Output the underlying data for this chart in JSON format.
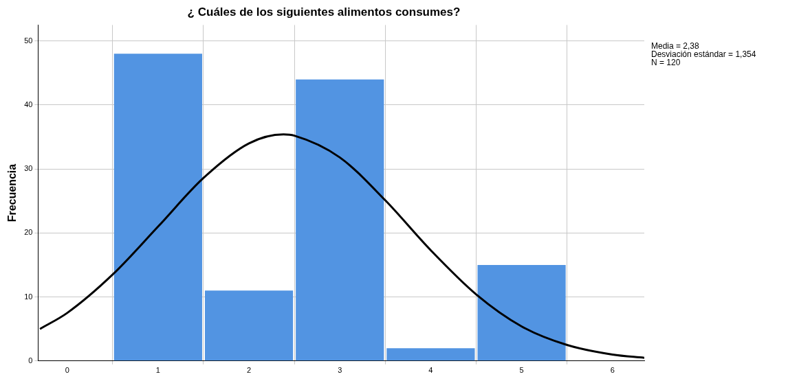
{
  "chart_data": {
    "type": "histogram",
    "title": "¿ Cuáles de los siguientes alimentos consumes?",
    "ylabel": "Frecuencia",
    "bins": [
      0.5,
      1.5,
      2.5,
      3.5,
      4.5,
      5.5
    ],
    "values": [
      48,
      11,
      44,
      2,
      15
    ],
    "color": "#5294e2",
    "series": [
      {
        "type": "line",
        "color": "#000000",
        "x": [
          -0.3,
          0,
          0.5,
          1,
          1.5,
          2,
          2.38,
          2.5,
          3,
          3.5,
          4,
          4.5,
          5,
          5.5,
          6,
          6.35
        ],
        "values": [
          5.0,
          7.5,
          13.5,
          21.0,
          28.6,
          34.0,
          35.4,
          35.2,
          31.8,
          25.1,
          17.3,
          10.4,
          5.4,
          2.5,
          1.0,
          0.5
        ]
      }
    ],
    "xlim": [
      -0.32,
      6.35
    ],
    "xticks": [
      0,
      1,
      2,
      3,
      4,
      5,
      6
    ],
    "ylim": [
      0,
      52.5
    ],
    "yticks": [
      0,
      10,
      20,
      30,
      40,
      50
    ],
    "grid": true,
    "legend": false,
    "marker": "none",
    "line_style": "solid",
    "annotations": [
      "Media = 2,38",
      "Desviación estándar = 1,354",
      "N = 120"
    ]
  }
}
